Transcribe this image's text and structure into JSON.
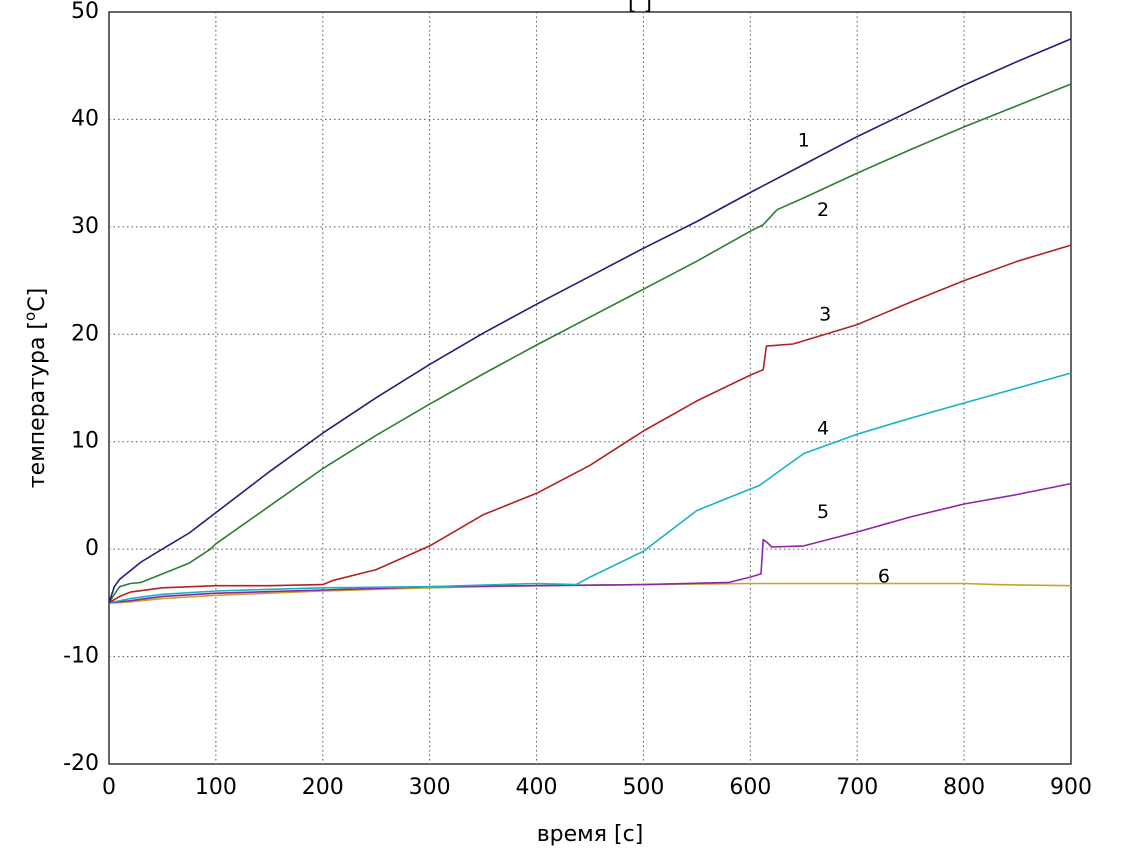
{
  "chart_data": {
    "type": "line",
    "title": "",
    "title_fragment": "[ ]",
    "xlabel": "время [с]",
    "ylabel_main": "температура [",
    "ylabel_sup": "o",
    "ylabel_tail": "C]",
    "xlim": [
      0,
      900
    ],
    "ylim": [
      -20,
      50
    ],
    "xticks": [
      0,
      100,
      200,
      300,
      400,
      500,
      600,
      700,
      800,
      900
    ],
    "yticks": [
      -20,
      -10,
      0,
      10,
      20,
      30,
      40,
      50
    ],
    "xtick_labels": [
      "0",
      "100",
      "200",
      "300",
      "400",
      "500",
      "600",
      "700",
      "800",
      "900"
    ],
    "ytick_labels": [
      "-20",
      "-10",
      "0",
      "10",
      "20",
      "30",
      "40",
      "50"
    ],
    "grid": true,
    "series": [
      {
        "name": "1",
        "color": "#1f1f7a",
        "label_at": [
          650,
          38
        ],
        "points": [
          [
            0,
            -5
          ],
          [
            5,
            -3.5
          ],
          [
            10,
            -2.8
          ],
          [
            20,
            -2
          ],
          [
            30,
            -1.2
          ],
          [
            50,
            0
          ],
          [
            75,
            1.5
          ],
          [
            100,
            3.4
          ],
          [
            150,
            7.2
          ],
          [
            200,
            10.8
          ],
          [
            250,
            14.1
          ],
          [
            300,
            17.2
          ],
          [
            350,
            20.1
          ],
          [
            400,
            22.8
          ],
          [
            450,
            25.4
          ],
          [
            500,
            28
          ],
          [
            550,
            30.5
          ],
          [
            600,
            33.2
          ],
          [
            650,
            35.8
          ],
          [
            700,
            38.4
          ],
          [
            750,
            40.8
          ],
          [
            800,
            43.2
          ],
          [
            850,
            45.4
          ],
          [
            900,
            47.5
          ]
        ]
      },
      {
        "name": "2",
        "color": "#2e7d32",
        "label_at": [
          668,
          31.5
        ],
        "points": [
          [
            0,
            -5
          ],
          [
            5,
            -4.2
          ],
          [
            10,
            -3.5
          ],
          [
            20,
            -3.2
          ],
          [
            30,
            -3.1
          ],
          [
            50,
            -2.3
          ],
          [
            75,
            -1.3
          ],
          [
            95,
            0
          ],
          [
            100,
            0.5
          ],
          [
            150,
            4
          ],
          [
            200,
            7.5
          ],
          [
            250,
            10.6
          ],
          [
            300,
            13.5
          ],
          [
            350,
            16.3
          ],
          [
            400,
            19
          ],
          [
            450,
            21.6
          ],
          [
            500,
            24.2
          ],
          [
            550,
            26.8
          ],
          [
            600,
            29.6
          ],
          [
            612,
            30.2
          ],
          [
            625,
            31.6
          ],
          [
            650,
            32.7
          ],
          [
            700,
            35
          ],
          [
            750,
            37.2
          ],
          [
            800,
            39.3
          ],
          [
            850,
            41.3
          ],
          [
            900,
            43.3
          ]
        ]
      },
      {
        "name": "3",
        "color": "#b22222",
        "label_at": [
          670,
          21.8
        ],
        "points": [
          [
            0,
            -5
          ],
          [
            5,
            -4.7
          ],
          [
            10,
            -4.4
          ],
          [
            20,
            -4
          ],
          [
            50,
            -3.6
          ],
          [
            100,
            -3.4
          ],
          [
            150,
            -3.4
          ],
          [
            200,
            -3.3
          ],
          [
            210,
            -2.9
          ],
          [
            250,
            -1.9
          ],
          [
            300,
            0.3
          ],
          [
            350,
            3.2
          ],
          [
            400,
            5.2
          ],
          [
            450,
            7.8
          ],
          [
            500,
            11
          ],
          [
            550,
            13.8
          ],
          [
            600,
            16.2
          ],
          [
            612,
            16.7
          ],
          [
            615,
            18.9
          ],
          [
            640,
            19.1
          ],
          [
            700,
            20.9
          ],
          [
            750,
            23
          ],
          [
            800,
            25
          ],
          [
            850,
            26.8
          ],
          [
            900,
            28.3
          ]
        ]
      },
      {
        "name": "4",
        "color": "#17b3c2",
        "label_at": [
          668,
          11.2
        ],
        "points": [
          [
            0,
            -5
          ],
          [
            20,
            -4.6
          ],
          [
            50,
            -4.2
          ],
          [
            100,
            -3.9
          ],
          [
            200,
            -3.6
          ],
          [
            300,
            -3.5
          ],
          [
            400,
            -3.2
          ],
          [
            437,
            -3.3
          ],
          [
            450,
            -2.6
          ],
          [
            500,
            -0.2
          ],
          [
            550,
            3.6
          ],
          [
            600,
            5.6
          ],
          [
            608,
            5.9
          ],
          [
            650,
            8.9
          ],
          [
            700,
            10.7
          ],
          [
            750,
            12.2
          ],
          [
            800,
            13.6
          ],
          [
            850,
            15
          ],
          [
            900,
            16.4
          ]
        ]
      },
      {
        "name": "5",
        "color": "#8e24aa",
        "label_at": [
          668,
          3.4
        ],
        "points": [
          [
            0,
            -5
          ],
          [
            20,
            -4.8
          ],
          [
            50,
            -4.4
          ],
          [
            100,
            -4.1
          ],
          [
            200,
            -3.8
          ],
          [
            300,
            -3.5
          ],
          [
            400,
            -3.4
          ],
          [
            500,
            -3.3
          ],
          [
            580,
            -3.1
          ],
          [
            600,
            -2.6
          ],
          [
            610,
            -2.3
          ],
          [
            612,
            0.9
          ],
          [
            616,
            0.6
          ],
          [
            620,
            0.2
          ],
          [
            650,
            0.3
          ],
          [
            700,
            1.6
          ],
          [
            750,
            3
          ],
          [
            800,
            4.2
          ],
          [
            850,
            5.1
          ],
          [
            900,
            6.1
          ]
        ]
      },
      {
        "name": "6",
        "color": "#c9a227",
        "label_at": [
          725,
          -2.6
        ],
        "points": [
          [
            0,
            -5
          ],
          [
            20,
            -4.9
          ],
          [
            50,
            -4.6
          ],
          [
            100,
            -4.3
          ],
          [
            200,
            -3.9
          ],
          [
            300,
            -3.6
          ],
          [
            400,
            -3.4
          ],
          [
            500,
            -3.3
          ],
          [
            600,
            -3.2
          ],
          [
            700,
            -3.2
          ],
          [
            800,
            -3.2
          ],
          [
            830,
            -3.3
          ],
          [
            900,
            -3.4
          ]
        ]
      }
    ]
  }
}
